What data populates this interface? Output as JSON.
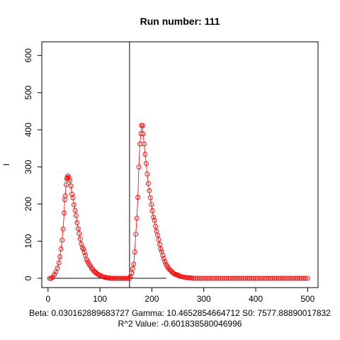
{
  "chart_data": {
    "type": "scatter",
    "title": "Run number:  111",
    "xlabel": "",
    "ylabel": "I",
    "xlim": [
      -12,
      520
    ],
    "ylim": [
      -25,
      637
    ],
    "x_ticks": [
      0,
      100,
      200,
      300,
      400,
      500
    ],
    "y_ticks": [
      0,
      100,
      200,
      300,
      400,
      500,
      600
    ],
    "grid": false,
    "caption_line1": "Beta:  0.030162889683727 Gamma:  10.4652854664712 S0:  7577.88890017832",
    "caption_line2": "R^2 Value:  -0.601838580046996",
    "vertical_line_x": 157,
    "baseline_segment": {
      "x0": 0,
      "x1": 228,
      "y": 0
    },
    "point_color": "#ff0000",
    "line_color": "#ff0000",
    "series": [
      {
        "points": [
          [
            3,
            0
          ],
          [
            6,
            0
          ],
          [
            9,
            3
          ],
          [
            12,
            10
          ],
          [
            15,
            17
          ],
          [
            18,
            27
          ],
          [
            21,
            42
          ],
          [
            23,
            58
          ],
          [
            25,
            79
          ],
          [
            27,
            103
          ],
          [
            29,
            133
          ],
          [
            31,
            176
          ],
          [
            32,
            212
          ],
          [
            33,
            222
          ],
          [
            35,
            252
          ],
          [
            36,
            268
          ],
          [
            37,
            271
          ],
          [
            38,
            276
          ],
          [
            40,
            272
          ],
          [
            42,
            264
          ],
          [
            44,
            249
          ],
          [
            46,
            227
          ],
          [
            48,
            217
          ],
          [
            50,
            198
          ],
          [
            52,
            183
          ],
          [
            54,
            169
          ],
          [
            56,
            150
          ],
          [
            58,
            134
          ],
          [
            60,
            121
          ],
          [
            62,
            106
          ],
          [
            64,
            93
          ],
          [
            66,
            83
          ],
          [
            68,
            79
          ],
          [
            70,
            70
          ],
          [
            72,
            62
          ],
          [
            74,
            51
          ],
          [
            76,
            46
          ],
          [
            78,
            40
          ],
          [
            80,
            36
          ],
          [
            82,
            33
          ],
          [
            84,
            27
          ],
          [
            86,
            24
          ],
          [
            88,
            20
          ],
          [
            90,
            18
          ],
          [
            92,
            15
          ],
          [
            94,
            13
          ],
          [
            96,
            11
          ],
          [
            98,
            9
          ],
          [
            100,
            8
          ],
          [
            103,
            6
          ],
          [
            106,
            4
          ],
          [
            109,
            3
          ],
          [
            112,
            2
          ],
          [
            115,
            1
          ],
          [
            118,
            1
          ],
          [
            121,
            0
          ],
          [
            124,
            0
          ],
          [
            127,
            0
          ],
          [
            130,
            0
          ],
          [
            133,
            0
          ],
          [
            136,
            0
          ],
          [
            139,
            0
          ],
          [
            142,
            0
          ],
          [
            145,
            0
          ],
          [
            148,
            0
          ],
          [
            151,
            0
          ],
          [
            154,
            0
          ],
          [
            157,
            0
          ],
          [
            159,
            5
          ],
          [
            161,
            14
          ],
          [
            163,
            26
          ],
          [
            165,
            38
          ],
          [
            167,
            71
          ],
          [
            169,
            119
          ],
          [
            171,
            162
          ],
          [
            173,
            218
          ],
          [
            175,
            300
          ],
          [
            177,
            362
          ],
          [
            179,
            390
          ],
          [
            180,
            412
          ],
          [
            182,
            411
          ],
          [
            183,
            389
          ],
          [
            185,
            362
          ],
          [
            187,
            334
          ],
          [
            189,
            309
          ],
          [
            191,
            281
          ],
          [
            193,
            255
          ],
          [
            195,
            236
          ],
          [
            197,
            217
          ],
          [
            199,
            199
          ],
          [
            201,
            182
          ],
          [
            203,
            165
          ],
          [
            205,
            156
          ],
          [
            207,
            140
          ],
          [
            209,
            127
          ],
          [
            211,
            116
          ],
          [
            213,
            104
          ],
          [
            215,
            91
          ],
          [
            217,
            79
          ],
          [
            219,
            72
          ],
          [
            221,
            62
          ],
          [
            223,
            53
          ],
          [
            225,
            45
          ],
          [
            227,
            38
          ],
          [
            229,
            33
          ],
          [
            231,
            29
          ],
          [
            233,
            25
          ],
          [
            235,
            22
          ],
          [
            237,
            20
          ],
          [
            239,
            17
          ],
          [
            241,
            14
          ],
          [
            243,
            12
          ],
          [
            245,
            11
          ],
          [
            247,
            10
          ],
          [
            249,
            9
          ],
          [
            251,
            8
          ],
          [
            253,
            6
          ],
          [
            256,
            5
          ],
          [
            259,
            4
          ],
          [
            262,
            3
          ],
          [
            265,
            2
          ],
          [
            268,
            2
          ],
          [
            271,
            1
          ],
          [
            274,
            1
          ],
          [
            277,
            1
          ],
          [
            280,
            0
          ],
          [
            284,
            0
          ],
          [
            288,
            0
          ],
          [
            292,
            0
          ],
          [
            296,
            0
          ],
          [
            300,
            0
          ],
          [
            304,
            0
          ],
          [
            308,
            0
          ],
          [
            312,
            0
          ],
          [
            316,
            0
          ],
          [
            320,
            0
          ],
          [
            324,
            0
          ],
          [
            328,
            0
          ],
          [
            332,
            0
          ],
          [
            336,
            0
          ],
          [
            340,
            0
          ],
          [
            344,
            0
          ],
          [
            348,
            0
          ],
          [
            352,
            0
          ],
          [
            356,
            0
          ],
          [
            360,
            0
          ],
          [
            364,
            0
          ],
          [
            368,
            0
          ],
          [
            372,
            0
          ],
          [
            376,
            0
          ],
          [
            380,
            0
          ],
          [
            384,
            0
          ],
          [
            388,
            0
          ],
          [
            392,
            0
          ],
          [
            396,
            0
          ],
          [
            400,
            0
          ],
          [
            404,
            0
          ],
          [
            408,
            0
          ],
          [
            412,
            0
          ],
          [
            416,
            0
          ],
          [
            420,
            0
          ],
          [
            424,
            0
          ],
          [
            428,
            0
          ],
          [
            432,
            0
          ],
          [
            436,
            0
          ],
          [
            440,
            0
          ],
          [
            444,
            0
          ],
          [
            448,
            0
          ],
          [
            452,
            0
          ],
          [
            456,
            0
          ],
          [
            460,
            0
          ],
          [
            464,
            0
          ],
          [
            468,
            0
          ],
          [
            472,
            0
          ],
          [
            476,
            0
          ],
          [
            480,
            0
          ],
          [
            484,
            0
          ],
          [
            488,
            0
          ],
          [
            492,
            0
          ],
          [
            496,
            0
          ],
          [
            500,
            0
          ]
        ]
      }
    ]
  }
}
